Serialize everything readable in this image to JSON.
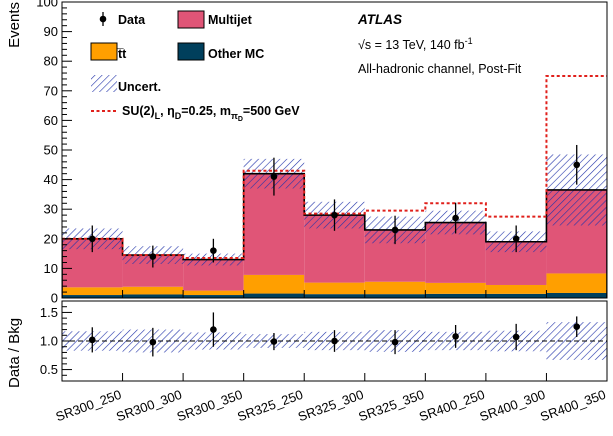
{
  "chart_data": {
    "type": "bar",
    "categories": [
      "SR300_250",
      "SR300_300",
      "SR300_350",
      "SR325_250",
      "SR325_300",
      "SR325_350",
      "SR400_250",
      "SR400_300",
      "SR400_350"
    ],
    "series": [
      {
        "name": "Other MC",
        "color": "#003f5c",
        "values": [
          1.0,
          1.2,
          1.0,
          1.5,
          1.3,
          1.3,
          1.4,
          1.4,
          1.7
        ]
      },
      {
        "name": "t̅t",
        "color": "#ff9f00",
        "values": [
          2.6,
          2.6,
          1.5,
          6.3,
          3.9,
          4.2,
          3.7,
          3.0,
          6.6
        ]
      },
      {
        "name": "Multijet",
        "color": "#e05577",
        "values": [
          16.4,
          10.7,
          10.5,
          34.2,
          22.8,
          17.5,
          20.4,
          14.6,
          28.2
        ]
      }
    ],
    "total_background": [
      20,
      14.5,
      13,
      42,
      28,
      23,
      25.5,
      19,
      36.5
    ],
    "uncertainty": [
      3.5,
      3.0,
      2.0,
      5.0,
      4.5,
      4.5,
      4.0,
      3.5,
      12
    ],
    "data": {
      "name": "Data",
      "values": [
        20,
        14,
        16,
        41,
        28,
        23,
        27,
        20,
        45
      ],
      "errors": [
        4.5,
        3.7,
        4.0,
        6.4,
        5.3,
        4.8,
        5.2,
        4.5,
        6.7
      ]
    },
    "signal": {
      "name": "SU(2)",
      "values": [
        20,
        14.5,
        13.5,
        43,
        28.5,
        29.5,
        32,
        27.5,
        75
      ]
    },
    "ratio": {
      "values": [
        1.02,
        0.98,
        1.2,
        0.99,
        1.0,
        0.98,
        1.08,
        1.07,
        1.25
      ],
      "errors": [
        0.22,
        0.25,
        0.3,
        0.15,
        0.19,
        0.21,
        0.2,
        0.23,
        0.18
      ],
      "band": [
        0.17,
        0.2,
        0.15,
        0.12,
        0.16,
        0.19,
        0.16,
        0.18,
        0.33
      ]
    },
    "ylabel": "Events",
    "ratio_ylabel": "Data / Bkg",
    "ylim": [
      0,
      100
    ],
    "yticks": [
      0,
      10,
      20,
      30,
      40,
      50,
      60,
      70,
      80,
      90,
      100
    ],
    "ratio_ylim": [
      0.3,
      1.7
    ],
    "ratio_yticks": [
      0.5,
      1.0,
      1.5
    ],
    "ratio_ytick_labels": [
      "0.5",
      "1.0",
      "1.5"
    ],
    "legend": {
      "data": "Data",
      "multijet": "Multijet",
      "ttbar": "t̅t",
      "other": "Other MC",
      "uncert": "Uncert.",
      "signal_prefix": "SU(2)",
      "signal_sub1": "L",
      "signal_mid": ", η",
      "signal_sub2": "D",
      "signal_mid2": "=0.25, m",
      "signal_sub3": "π",
      "signal_sub4": "D",
      "signal_suffix": "=500 GeV"
    },
    "atlas": {
      "label": "ATLAS",
      "energy_prefix": "√s = 13 TeV, 140 fb",
      "energy_sup": "-1",
      "channel": "All-hadronic channel, Post-Fit"
    },
    "colors": {
      "multijet": "#e05577",
      "ttbar": "#ff9f00",
      "other": "#003f5c",
      "uncert": "#2233aa",
      "signal": "#e0201b"
    }
  }
}
